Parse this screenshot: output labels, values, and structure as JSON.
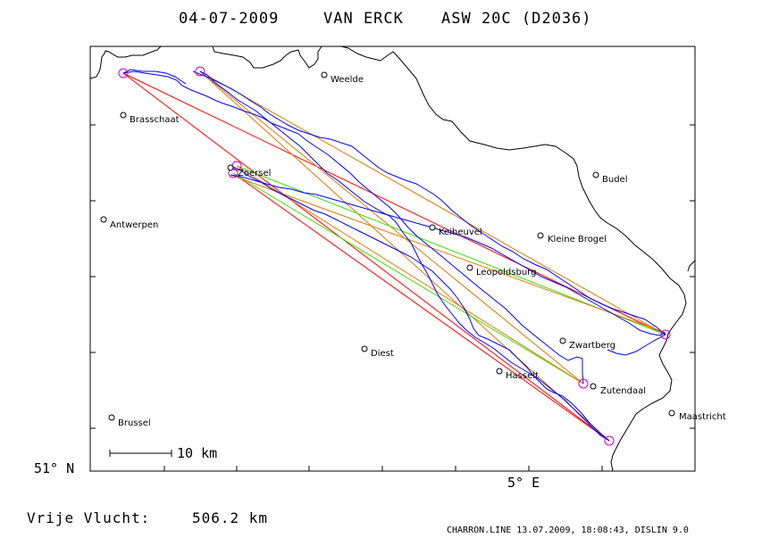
{
  "header": {
    "date": "04-07-2009",
    "pilot": "VAN ERCK",
    "glider": "ASW 20C (D2036)"
  },
  "axes": {
    "lat_label": "51° N",
    "lon_label": "5° E"
  },
  "scale": {
    "label": "10 km"
  },
  "distance": {
    "label": "Vrije Vlucht:",
    "value": "506.2 km"
  },
  "footer": {
    "credit": "CHARRON.LINE 13.07.2009, 18:08:43, DISLIN 9.0"
  },
  "cities": [
    {
      "name": "Weelde"
    },
    {
      "name": "Brasschaat"
    },
    {
      "name": "Zoersel"
    },
    {
      "name": "Budel"
    },
    {
      "name": "Antwerpen"
    },
    {
      "name": "Keiheuvel"
    },
    {
      "name": "Kleine Brogel"
    },
    {
      "name": "Leopoldsburg"
    },
    {
      "name": "Zwartberg"
    },
    {
      "name": "Diest"
    },
    {
      "name": "Hasselt"
    },
    {
      "name": "Zutendaal"
    },
    {
      "name": "Maastricht"
    },
    {
      "name": "Brussel"
    }
  ],
  "colors": {
    "track": "#0000ff",
    "leg_red": "#ff0000",
    "leg_green": "#44dd00",
    "leg_orange": "#e07800",
    "turnpoint": "#cc00cc",
    "border": "#000000"
  }
}
